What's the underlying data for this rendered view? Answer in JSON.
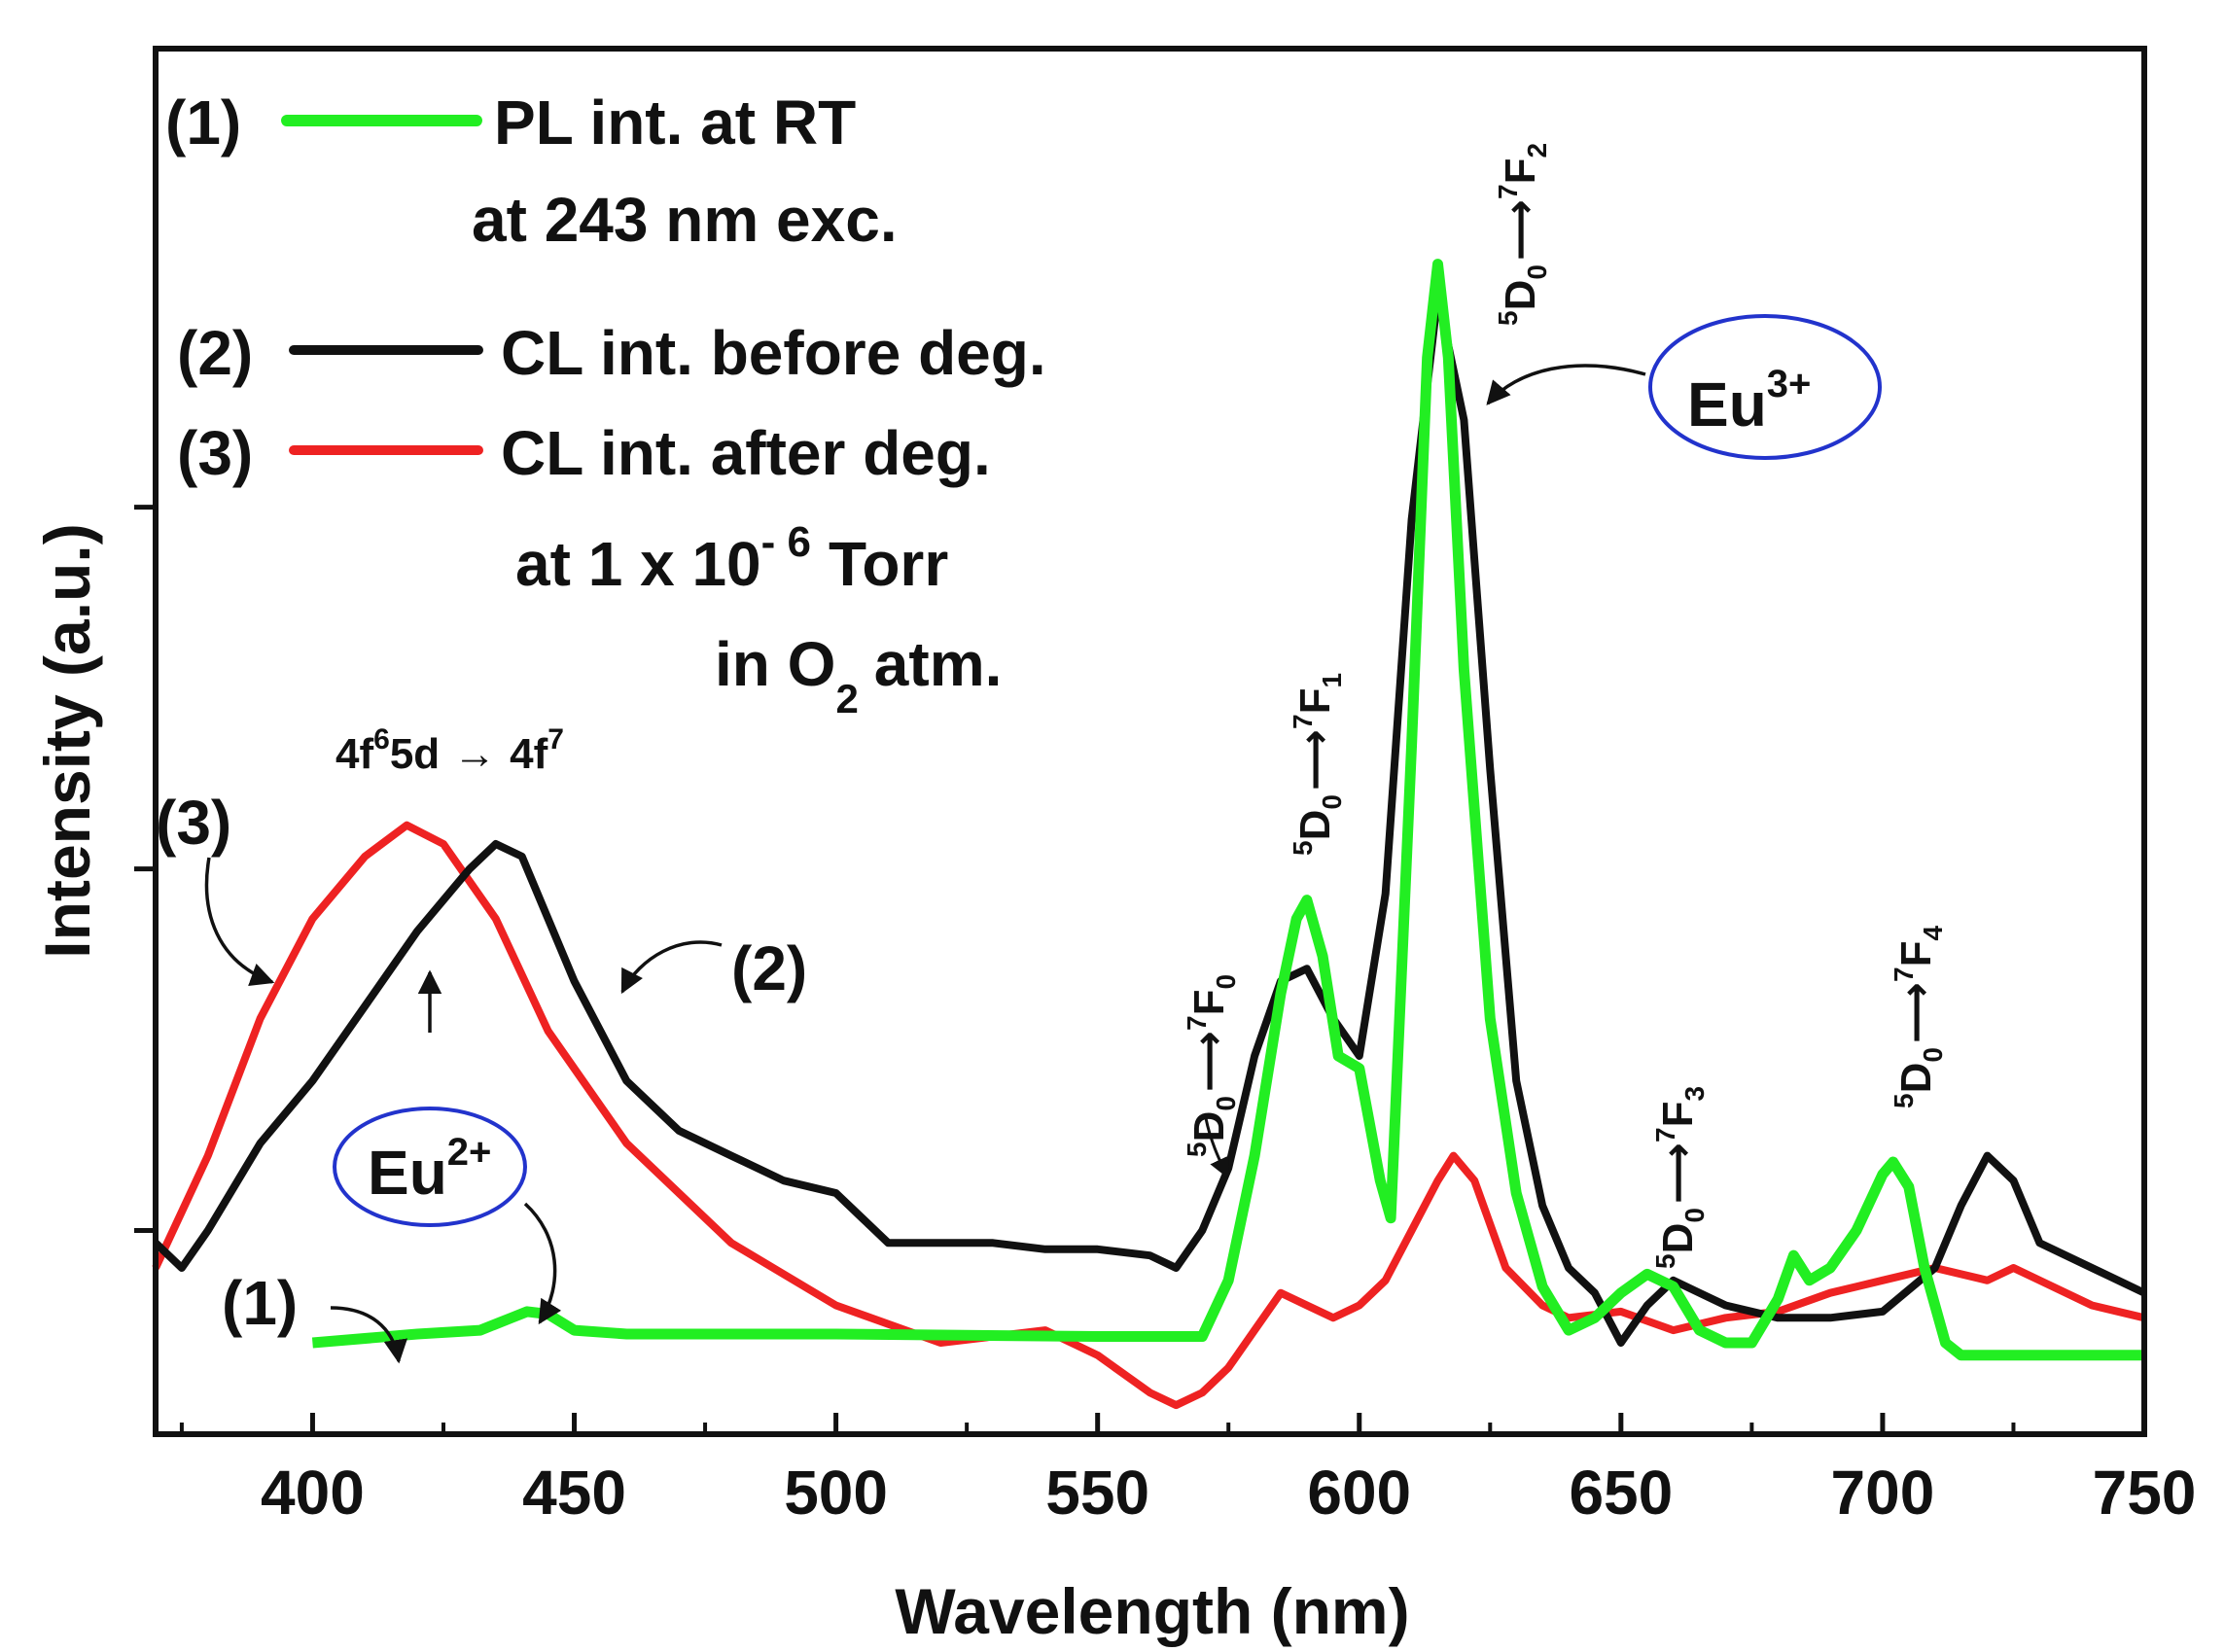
{
  "chart_data": {
    "type": "line",
    "xlabel": "Wavelength (nm)",
    "ylabel": "Intensity (a.u.)",
    "xlim": [
      370,
      750
    ],
    "ylim": [
      0,
      1.0
    ],
    "x_ticks": [
      400,
      450,
      500,
      550,
      600,
      650,
      700,
      750
    ],
    "x_tick_labels": [
      "400",
      "450",
      "500",
      "550",
      "600",
      "650",
      "700",
      "750"
    ],
    "y_ticks": [
      0.13,
      0.42,
      0.71
    ],
    "y_tick_labels_shown": false,
    "series": [
      {
        "name": "PL int. at RT at 243 nm exc.",
        "tag": "(1)",
        "color": "#22ee22",
        "x": [
          400,
          420,
          432,
          438,
          441,
          445,
          450,
          460,
          500,
          550,
          570,
          575,
          580,
          585,
          588,
          590,
          593,
          596,
          600,
          604,
          606,
          610,
          613,
          615,
          617,
          620,
          625,
          630,
          635,
          640,
          645,
          650,
          655,
          660,
          665,
          670,
          675,
          680,
          683,
          686,
          690,
          695,
          700,
          702,
          705,
          708,
          712,
          715,
          720,
          730,
          750
        ],
        "y": [
          0.04,
          0.047,
          0.05,
          0.06,
          0.065,
          0.063,
          0.05,
          0.047,
          0.047,
          0.045,
          0.045,
          0.09,
          0.19,
          0.32,
          0.38,
          0.395,
          0.35,
          0.27,
          0.26,
          0.17,
          0.14,
          0.52,
          0.83,
          0.905,
          0.83,
          0.58,
          0.3,
          0.16,
          0.085,
          0.05,
          0.06,
          0.08,
          0.095,
          0.085,
          0.05,
          0.04,
          0.04,
          0.075,
          0.11,
          0.09,
          0.1,
          0.13,
          0.175,
          0.185,
          0.165,
          0.1,
          0.04,
          0.03,
          0.03,
          0.03,
          0.03
        ]
      },
      {
        "name": "CL int. before deg.",
        "tag": "(2)",
        "color": "#111111",
        "x": [
          370,
          375,
          380,
          390,
          400,
          410,
          420,
          430,
          435,
          440,
          450,
          460,
          470,
          480,
          490,
          500,
          505,
          510,
          520,
          530,
          540,
          550,
          560,
          565,
          570,
          575,
          580,
          585,
          590,
          595,
          600,
          605,
          610,
          615,
          620,
          625,
          630,
          635,
          640,
          645,
          650,
          655,
          660,
          665,
          670,
          675,
          680,
          690,
          700,
          710,
          715,
          720,
          725,
          730,
          740,
          750
        ],
        "y": [
          0.12,
          0.1,
          0.13,
          0.2,
          0.25,
          0.31,
          0.37,
          0.42,
          0.44,
          0.43,
          0.33,
          0.25,
          0.21,
          0.19,
          0.17,
          0.16,
          0.14,
          0.12,
          0.12,
          0.12,
          0.115,
          0.115,
          0.11,
          0.1,
          0.13,
          0.18,
          0.27,
          0.33,
          0.34,
          0.3,
          0.27,
          0.4,
          0.7,
          0.88,
          0.78,
          0.5,
          0.25,
          0.15,
          0.1,
          0.08,
          0.04,
          0.07,
          0.09,
          0.08,
          0.07,
          0.065,
          0.06,
          0.06,
          0.065,
          0.1,
          0.15,
          0.19,
          0.17,
          0.12,
          0.1,
          0.08
        ]
      },
      {
        "name": "CL int. after deg. at 1 x 10⁻⁶ Torr in O₂ atm.",
        "tag": "(3)",
        "color": "#ee2222",
        "x": [
          370,
          380,
          390,
          400,
          410,
          418,
          425,
          435,
          445,
          460,
          480,
          500,
          520,
          540,
          550,
          560,
          565,
          570,
          575,
          580,
          585,
          590,
          595,
          600,
          605,
          610,
          615,
          618,
          622,
          628,
          635,
          640,
          650,
          660,
          670,
          680,
          690,
          700,
          710,
          720,
          725,
          730,
          740,
          750
        ],
        "y": [
          0.1,
          0.19,
          0.3,
          0.38,
          0.43,
          0.455,
          0.44,
          0.38,
          0.29,
          0.2,
          0.12,
          0.07,
          0.04,
          0.05,
          0.03,
          0.0,
          -0.01,
          0.0,
          0.02,
          0.05,
          0.08,
          0.07,
          0.06,
          0.07,
          0.09,
          0.13,
          0.17,
          0.19,
          0.17,
          0.1,
          0.07,
          0.06,
          0.065,
          0.05,
          0.06,
          0.065,
          0.08,
          0.09,
          0.1,
          0.09,
          0.1,
          0.09,
          0.07,
          0.06
        ]
      }
    ],
    "legend": [
      {
        "tag": "(1)",
        "line1": "PL int. at RT",
        "line2": "at 243 nm exc."
      },
      {
        "tag": "(2)",
        "line1": "CL int. before deg."
      },
      {
        "tag": "(3)",
        "line1": "CL int. after deg.",
        "line2_main": "at 1 x 10",
        "line2_sup": "- 6",
        "line2_tail": "Torr",
        "line3_a": "in O",
        "line3_sub": "2",
        "line3_b": "atm."
      }
    ],
    "annotations": {
      "eu3": {
        "main": "Eu",
        "sup": "3+"
      },
      "eu2": {
        "main": "Eu",
        "sup": "2+"
      },
      "band": {
        "a": "4f",
        "a_sup": "6",
        "b": "5d",
        "arrow": "→",
        "c": "4f",
        "c_sup": "7"
      },
      "curve_tags": [
        "(1)",
        "(2)",
        "(3)"
      ],
      "transitions": [
        {
          "id": "F0",
          "upper": "5",
          "D": "D",
          "Dsub": "0",
          "lower": "7",
          "F": "F",
          "Fsub": "0"
        },
        {
          "id": "F1",
          "upper": "5",
          "D": "D",
          "Dsub": "0",
          "lower": "7",
          "F": "F",
          "Fsub": "1"
        },
        {
          "id": "F2",
          "upper": "5",
          "D": "D",
          "Dsub": "0",
          "lower": "7",
          "F": "F",
          "Fsub": "2"
        },
        {
          "id": "F3",
          "upper": "5",
          "D": "D",
          "Dsub": "0",
          "lower": "7",
          "F": "F",
          "Fsub": "3"
        },
        {
          "id": "F4",
          "upper": "5",
          "D": "D",
          "Dsub": "0",
          "lower": "7",
          "F": "F",
          "Fsub": "4"
        }
      ]
    }
  }
}
